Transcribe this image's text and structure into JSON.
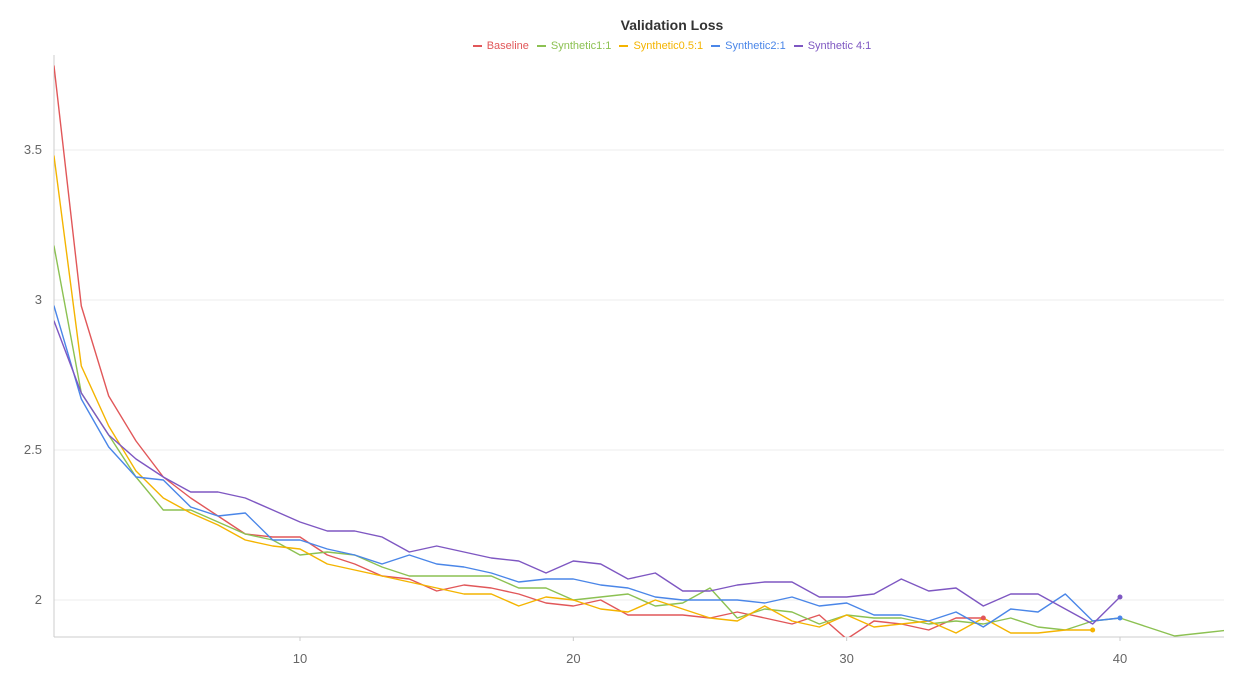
{
  "chart_data": {
    "type": "line",
    "title": "Validation Loss",
    "xlabel": "",
    "ylabel": "",
    "xlim": [
      1,
      44
    ],
    "ylim": [
      1.88,
      3.8
    ],
    "grid": "horizontal",
    "legend_placement": "top-center",
    "x_ticks": [
      10,
      20,
      30,
      40
    ],
    "y_ticks": [
      2,
      2.5,
      3,
      3.5
    ],
    "series": [
      {
        "name": "Baseline",
        "color": "#e15759",
        "x": [
          1,
          2,
          3,
          4,
          5,
          6,
          7,
          8,
          9,
          10,
          11,
          12,
          13,
          14,
          15,
          16,
          17,
          18,
          19,
          20,
          21,
          22,
          23,
          24,
          25,
          26,
          27,
          28,
          29,
          30,
          31,
          32,
          33,
          34,
          35
        ],
        "y": [
          3.78,
          2.98,
          2.68,
          2.53,
          2.41,
          2.34,
          2.28,
          2.22,
          2.21,
          2.21,
          2.15,
          2.12,
          2.08,
          2.07,
          2.03,
          2.05,
          2.04,
          2.02,
          1.99,
          1.98,
          2.0,
          1.95,
          1.95,
          1.95,
          1.94,
          1.96,
          1.94,
          1.92,
          1.95,
          1.87,
          1.93,
          1.92,
          1.9,
          1.94,
          1.94
        ]
      },
      {
        "name": "Synthetic1:1",
        "color": "#8cc152",
        "x": [
          1,
          2,
          3,
          4,
          5,
          6,
          7,
          8,
          9,
          10,
          11,
          12,
          13,
          14,
          15,
          16,
          17,
          18,
          19,
          20,
          21,
          22,
          23,
          24,
          25,
          26,
          27,
          28,
          29,
          30,
          31,
          32,
          33,
          34,
          35,
          36,
          37,
          38,
          39,
          40,
          41,
          42,
          43,
          44
        ],
        "y": [
          3.18,
          2.69,
          2.55,
          2.41,
          2.3,
          2.3,
          2.26,
          2.22,
          2.2,
          2.15,
          2.16,
          2.15,
          2.11,
          2.08,
          2.08,
          2.08,
          2.08,
          2.04,
          2.04,
          2.0,
          2.01,
          2.02,
          1.98,
          1.99,
          2.04,
          1.94,
          1.97,
          1.96,
          1.92,
          1.95,
          1.94,
          1.94,
          1.92,
          1.93,
          1.92,
          1.94,
          1.91,
          1.9,
          1.93,
          1.94,
          1.91,
          1.88,
          1.89,
          1.9
        ]
      },
      {
        "name": "Synthetic0.5:1",
        "color": "#f4b400",
        "x": [
          1,
          2,
          3,
          4,
          5,
          6,
          7,
          8,
          9,
          10,
          11,
          12,
          13,
          14,
          15,
          16,
          17,
          18,
          19,
          20,
          21,
          22,
          23,
          24,
          25,
          26,
          27,
          28,
          29,
          30,
          31,
          32,
          33,
          34,
          35,
          36,
          37,
          38,
          39
        ],
        "y": [
          3.48,
          2.78,
          2.58,
          2.43,
          2.34,
          2.29,
          2.25,
          2.2,
          2.18,
          2.17,
          2.12,
          2.1,
          2.08,
          2.06,
          2.04,
          2.02,
          2.02,
          1.98,
          2.01,
          2.0,
          1.97,
          1.96,
          2.0,
          1.97,
          1.94,
          1.93,
          1.98,
          1.93,
          1.91,
          1.95,
          1.91,
          1.92,
          1.93,
          1.89,
          1.94,
          1.89,
          1.89,
          1.9,
          1.9
        ]
      },
      {
        "name": "Synthetic2:1",
        "color": "#4a86e8",
        "x": [
          1,
          2,
          3,
          4,
          5,
          6,
          7,
          8,
          9,
          10,
          11,
          12,
          13,
          14,
          15,
          16,
          17,
          18,
          19,
          20,
          21,
          22,
          23,
          24,
          25,
          26,
          27,
          28,
          29,
          30,
          31,
          32,
          33,
          34,
          35,
          36,
          37,
          38,
          39,
          40
        ],
        "y": [
          2.98,
          2.67,
          2.51,
          2.41,
          2.4,
          2.31,
          2.28,
          2.29,
          2.2,
          2.2,
          2.17,
          2.15,
          2.12,
          2.15,
          2.12,
          2.11,
          2.09,
          2.06,
          2.07,
          2.07,
          2.05,
          2.04,
          2.01,
          2.0,
          2.0,
          2.0,
          1.99,
          2.01,
          1.98,
          1.99,
          1.95,
          1.95,
          1.93,
          1.96,
          1.91,
          1.97,
          1.96,
          2.02,
          1.93,
          1.94
        ]
      },
      {
        "name": "Synthetic 4:1",
        "color": "#7e57c2",
        "x": [
          1,
          2,
          3,
          4,
          5,
          6,
          7,
          8,
          9,
          10,
          11,
          12,
          13,
          14,
          15,
          16,
          17,
          18,
          19,
          20,
          21,
          22,
          23,
          24,
          25,
          26,
          27,
          28,
          29,
          30,
          31,
          32,
          33,
          34,
          35,
          36,
          37,
          38,
          39,
          40
        ],
        "y": [
          2.93,
          2.69,
          2.55,
          2.47,
          2.41,
          2.36,
          2.36,
          2.34,
          2.3,
          2.26,
          2.23,
          2.23,
          2.21,
          2.16,
          2.18,
          2.16,
          2.14,
          2.13,
          2.09,
          2.13,
          2.12,
          2.07,
          2.09,
          2.03,
          2.03,
          2.05,
          2.06,
          2.06,
          2.01,
          2.01,
          2.02,
          2.07,
          2.03,
          2.04,
          1.98,
          2.02,
          2.02,
          1.97,
          1.92,
          2.01
        ]
      }
    ]
  }
}
